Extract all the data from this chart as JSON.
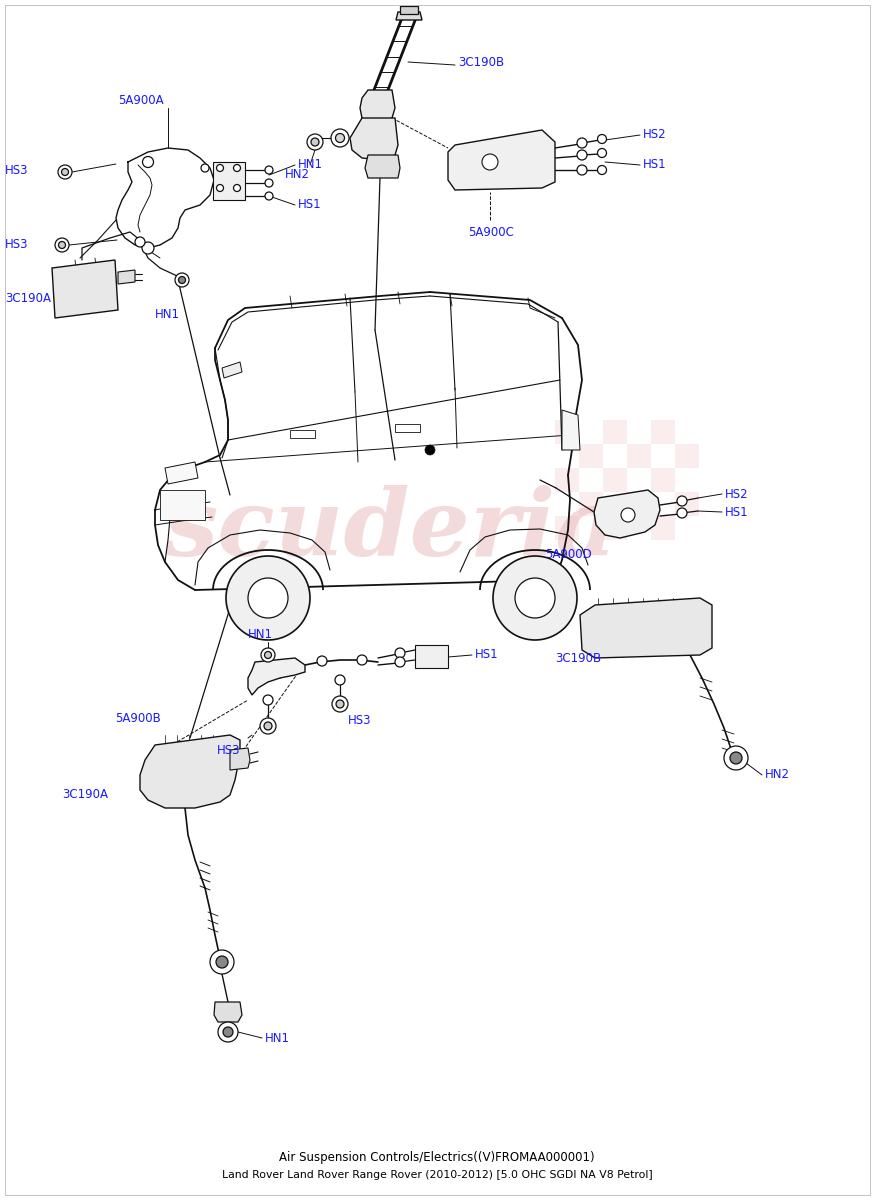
{
  "title": "Air Suspension Controls/Electrics((V)FROMAA000001)",
  "subtitle": "Land Rover Land Rover Range Rover (2010-2012) [5.0 OHC SGDI NA V8 Petrol]",
  "bg_color": "#ffffff",
  "label_color": "#1a1aff",
  "line_color": "#111111",
  "watermark_text": "scuderia",
  "watermark_color": "#e8b0b0",
  "checker_color": "#e8b0b0",
  "fig_width": 8.75,
  "fig_height": 12.0,
  "dpi": 100,
  "border_color": "#aaaaaa",
  "title_fontsize": 8.5,
  "label_fontsize": 8.5
}
